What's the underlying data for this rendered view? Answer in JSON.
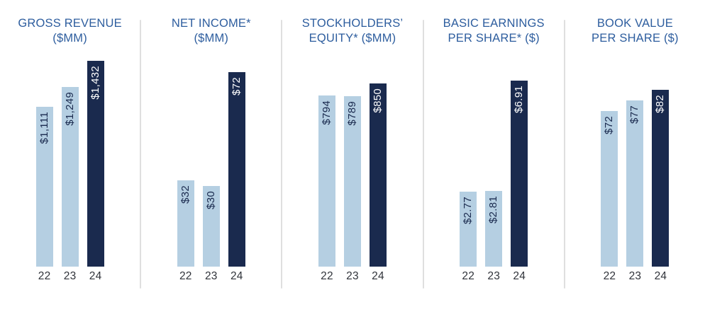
{
  "style": {
    "bar_color_light": "#b5cfe2",
    "bar_color_dark": "#1a2a4e",
    "value_text_on_light": "#1a2a4e",
    "value_text_on_dark": "#ffffff",
    "title_color": "#2d5d9e",
    "axis_label_color": "#30333a",
    "divider_color": "#dfdfdf",
    "background": "#ffffff"
  },
  "chart_data": [
    {
      "type": "bar",
      "title_lines": [
        "GROSS REVENUE",
        "($MM)"
      ],
      "categories": [
        "22",
        "23",
        "24"
      ],
      "values": [
        1111,
        1249,
        1432
      ],
      "value_labels": [
        "$1,111",
        "$1,249",
        "$1,432"
      ],
      "ylim": [
        0,
        1500
      ],
      "bar_colors": [
        "light",
        "light",
        "dark"
      ],
      "grid": false,
      "legend": false,
      "value_label_orientation": "vertical"
    },
    {
      "type": "bar",
      "title_lines": [
        "NET INCOME*",
        "($MM)"
      ],
      "categories": [
        "22",
        "23",
        "24"
      ],
      "values": [
        32,
        30,
        72
      ],
      "value_labels": [
        "$32",
        "$30",
        "$72"
      ],
      "ylim": [
        0,
        80
      ],
      "bar_colors": [
        "light",
        "light",
        "dark"
      ],
      "grid": false,
      "legend": false,
      "value_label_orientation": "vertical"
    },
    {
      "type": "bar",
      "title_lines": [
        "STOCKHOLDERS’",
        "EQUITY* ($MM)"
      ],
      "categories": [
        "22",
        "23",
        "24"
      ],
      "values": [
        794,
        789,
        850
      ],
      "value_labels": [
        "$794",
        "$789",
        "$850"
      ],
      "ylim": [
        0,
        1000
      ],
      "bar_colors": [
        "light",
        "light",
        "dark"
      ],
      "grid": false,
      "legend": false,
      "value_label_orientation": "vertical"
    },
    {
      "type": "bar",
      "title_lines": [
        "BASIC EARNINGS",
        "PER SHARE* ($)"
      ],
      "categories": [
        "22",
        "23",
        "24"
      ],
      "values": [
        2.77,
        2.81,
        6.91
      ],
      "value_labels": [
        "$2.77",
        "$2.81",
        "$6.91"
      ],
      "ylim": [
        0,
        8
      ],
      "bar_colors": [
        "light",
        "light",
        "dark"
      ],
      "grid": false,
      "legend": false,
      "value_label_orientation": "vertical"
    },
    {
      "type": "bar",
      "title_lines": [
        "BOOK VALUE",
        "PER SHARE ($)"
      ],
      "categories": [
        "22",
        "23",
        "24"
      ],
      "values": [
        72,
        77,
        82
      ],
      "value_labels": [
        "$72",
        "$77",
        "$82"
      ],
      "ylim": [
        0,
        100
      ],
      "bar_colors": [
        "light",
        "light",
        "dark"
      ],
      "grid": false,
      "legend": false,
      "value_label_orientation": "vertical"
    }
  ]
}
